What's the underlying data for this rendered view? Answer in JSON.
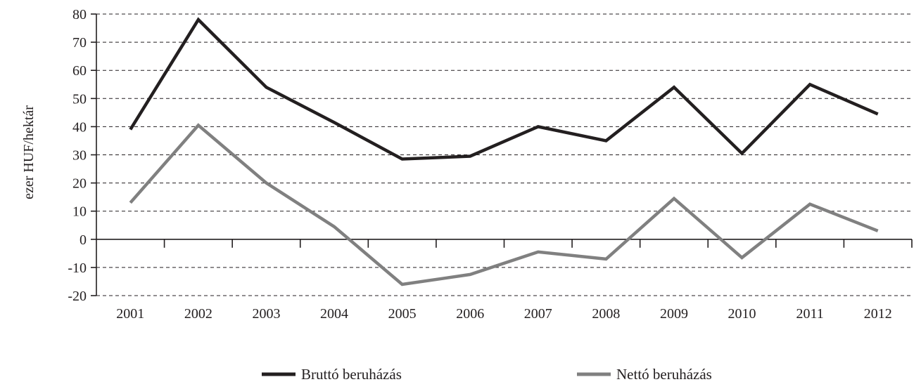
{
  "chart_data": {
    "type": "line",
    "ylabel": "ezer HUF/hektár",
    "xlabel": "",
    "categories": [
      "2001",
      "2002",
      "2003",
      "2004",
      "2005",
      "2006",
      "2007",
      "2008",
      "2009",
      "2010",
      "2011",
      "2012"
    ],
    "ylim": [
      -20,
      80
    ],
    "yticks": [
      -20,
      -10,
      0,
      10,
      20,
      30,
      40,
      50,
      60,
      70,
      80
    ],
    "grid": true,
    "legend_position": "bottom",
    "series": [
      {
        "name": "Bruttó beruházás",
        "color": "#231f20",
        "values": [
          39,
          78,
          54,
          41.5,
          28.5,
          29.5,
          40,
          35,
          54,
          30.5,
          55,
          44.5
        ]
      },
      {
        "name": "Nettó beruházás",
        "color": "#808080",
        "values": [
          13,
          40.5,
          20,
          4.5,
          -16,
          -12.5,
          -4.5,
          -7,
          14.5,
          -6.5,
          12.5,
          3
        ]
      }
    ]
  }
}
